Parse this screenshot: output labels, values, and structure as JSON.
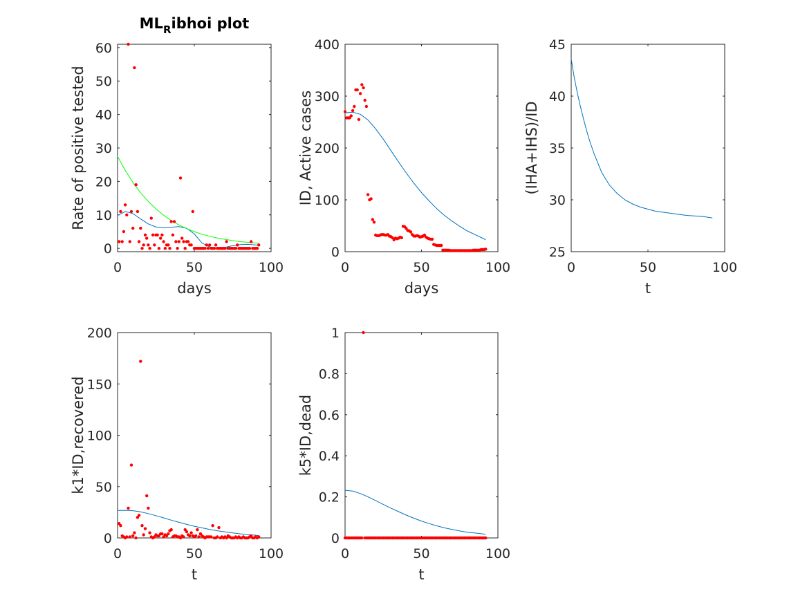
{
  "figure": {
    "title_main": "ML",
    "title_sub": "R",
    "title_rest": "ibhoi plot"
  },
  "chart_data": [
    {
      "type": "scatter",
      "xlabel": "days",
      "ylabel": "Rate of positive tested",
      "xlim": [
        0,
        100
      ],
      "ylim": [
        -1,
        61
      ],
      "xticks": [
        0,
        50,
        100
      ],
      "yticks": [
        0,
        10,
        20,
        30,
        40,
        50,
        60
      ],
      "grid": false,
      "points": {
        "name": "",
        "color": "#ff0000",
        "x": [
          1,
          2,
          3,
          4,
          5,
          6,
          7,
          8,
          9,
          10,
          11,
          12,
          13,
          14,
          15,
          16,
          17,
          18,
          19,
          20,
          21,
          22,
          23,
          24,
          25,
          26,
          27,
          28,
          29,
          30,
          31,
          32,
          33,
          34,
          35,
          36,
          37,
          38,
          39,
          40,
          41,
          42,
          43,
          44,
          45,
          46,
          47,
          48,
          49,
          50,
          51,
          52,
          53,
          54,
          55,
          56,
          57,
          58,
          59,
          60,
          61,
          62,
          63,
          64,
          65,
          66,
          67,
          68,
          69,
          70,
          71,
          72,
          73,
          74,
          75,
          76,
          77,
          78,
          79,
          80,
          81,
          82,
          83,
          84,
          85,
          86,
          87,
          88,
          89,
          90,
          91,
          92
        ],
        "y": [
          2,
          11,
          2,
          5,
          13,
          10,
          61,
          2,
          11,
          6,
          54,
          19,
          11,
          2,
          6,
          0,
          1,
          4,
          3,
          1,
          0,
          9,
          4,
          1,
          4,
          4,
          0,
          3,
          4,
          2,
          0,
          1,
          1,
          0,
          8,
          4,
          8,
          2,
          0,
          2,
          21,
          3,
          2,
          0,
          2,
          2,
          1,
          1,
          11,
          0,
          0,
          0,
          0,
          0,
          0,
          0,
          0,
          1,
          0,
          1,
          0,
          0,
          0,
          1,
          0,
          0,
          0,
          0,
          0,
          0,
          2,
          0,
          0,
          0,
          0,
          0,
          0,
          1,
          0,
          0,
          0,
          0,
          0,
          0,
          0,
          0,
          2,
          0,
          0,
          0,
          0,
          1
        ]
      },
      "lines": [
        {
          "name": "",
          "color": "#0072bd",
          "x": [
            0,
            5,
            10,
            15,
            20,
            25,
            30,
            35,
            40,
            45,
            50,
            55,
            60,
            65,
            70,
            75,
            80,
            85,
            90,
            92
          ],
          "y": [
            9.8,
            11.0,
            10.4,
            8.8,
            7.3,
            6.4,
            6.1,
            6.3,
            6.5,
            6.0,
            4.3,
            1.6,
            0.4,
            0.1,
            0.3,
            0.8,
            1.1,
            1.2,
            1.0,
            0.9
          ]
        },
        {
          "name": "",
          "color": "#00ff00",
          "x": [
            0,
            5,
            10,
            15,
            20,
            25,
            30,
            35,
            40,
            45,
            50,
            55,
            60,
            65,
            70,
            75,
            80,
            85,
            90,
            92
          ],
          "y": [
            27.5,
            23.3,
            19.7,
            16.6,
            14.0,
            11.8,
            9.9,
            8.3,
            7.0,
            5.9,
            5.0,
            4.2,
            3.6,
            3.1,
            2.7,
            2.3,
            2.0,
            1.8,
            1.6,
            1.5
          ]
        }
      ]
    },
    {
      "type": "scatter",
      "xlabel": "days",
      "ylabel": "ID, Active cases",
      "xlim": [
        0,
        100
      ],
      "ylim": [
        0,
        400
      ],
      "xticks": [
        0,
        50,
        100
      ],
      "yticks": [
        0,
        100,
        200,
        300,
        400
      ],
      "grid": false,
      "points": {
        "name": "",
        "color": "#ff0000",
        "x": [
          0,
          1,
          2,
          3,
          4,
          5,
          6,
          7,
          8,
          9,
          10,
          11,
          12,
          13,
          14,
          15,
          16,
          17,
          18,
          19,
          20,
          21,
          22,
          23,
          24,
          25,
          26,
          27,
          28,
          29,
          30,
          31,
          32,
          33,
          34,
          35,
          36,
          37,
          38,
          39,
          40,
          41,
          42,
          43,
          44,
          45,
          46,
          47,
          48,
          49,
          50,
          51,
          52,
          53,
          54,
          55,
          56,
          57,
          58,
          59,
          60,
          61,
          62,
          63,
          64,
          65,
          66,
          67,
          68,
          69,
          70,
          71,
          72,
          73,
          74,
          75,
          76,
          77,
          78,
          79,
          80,
          81,
          82,
          83,
          84,
          85,
          86,
          87,
          88,
          89,
          90,
          91,
          92
        ],
        "y": [
          270,
          258,
          258,
          258,
          262,
          272,
          280,
          312,
          312,
          255,
          305,
          322,
          316,
          292,
          280,
          110,
          100,
          102,
          62,
          57,
          32,
          31,
          31,
          32,
          33,
          33,
          32,
          32,
          33,
          30,
          29,
          27,
          23,
          26,
          25,
          26,
          28,
          27,
          49,
          48,
          45,
          41,
          40,
          38,
          33,
          30,
          30,
          31,
          30,
          28,
          29,
          30,
          32,
          28,
          26,
          25,
          24,
          24,
          14,
          13,
          12,
          12,
          12,
          12,
          3,
          3,
          3,
          3,
          3,
          2,
          2,
          2,
          2,
          2,
          2,
          2,
          2,
          2,
          2,
          2,
          2,
          2,
          2,
          2,
          3,
          3,
          3,
          3,
          3,
          4,
          4,
          4,
          5
        ]
      },
      "lines": [
        {
          "name": "",
          "color": "#0072bd",
          "x": [
            0,
            5,
            10,
            15,
            20,
            25,
            30,
            35,
            40,
            45,
            50,
            55,
            60,
            65,
            70,
            75,
            80,
            85,
            90,
            92
          ],
          "y": [
            268,
            269,
            265,
            254,
            237,
            217,
            195,
            173,
            152,
            132,
            114,
            98,
            83,
            70,
            59,
            49,
            40,
            33,
            26,
            23
          ]
        }
      ]
    },
    {
      "type": "line",
      "xlabel": "t",
      "ylabel": "(IHA+IHS)/ID",
      "xlim": [
        0,
        100
      ],
      "ylim": [
        25,
        45
      ],
      "xticks": [
        0,
        50,
        100
      ],
      "yticks": [
        25,
        30,
        35,
        40,
        45
      ],
      "grid": false,
      "lines": [
        {
          "name": "",
          "color": "#0072bd",
          "x": [
            0,
            2,
            4,
            6,
            8,
            10,
            12,
            15,
            20,
            25,
            30,
            35,
            40,
            45,
            50,
            55,
            60,
            65,
            70,
            75,
            80,
            85,
            90,
            92
          ],
          "y": [
            43.6,
            41.8,
            40.3,
            39.0,
            37.8,
            36.7,
            35.7,
            34.4,
            32.6,
            31.4,
            30.6,
            30.0,
            29.6,
            29.3,
            29.1,
            28.9,
            28.8,
            28.7,
            28.6,
            28.5,
            28.45,
            28.4,
            28.3,
            28.25
          ]
        }
      ]
    },
    {
      "type": "scatter",
      "xlabel": "t",
      "ylabel": "k1*ID,recovered",
      "xlim": [
        0,
        100
      ],
      "ylim": [
        0,
        200
      ],
      "xticks": [
        0,
        50,
        100
      ],
      "yticks": [
        0,
        50,
        100,
        150,
        200
      ],
      "grid": false,
      "points": {
        "name": "",
        "color": "#ff0000",
        "x": [
          1,
          2,
          3,
          4,
          5,
          6,
          7,
          8,
          9,
          10,
          11,
          12,
          13,
          14,
          15,
          16,
          17,
          18,
          19,
          20,
          21,
          22,
          23,
          24,
          25,
          26,
          27,
          28,
          29,
          30,
          31,
          32,
          33,
          34,
          35,
          36,
          37,
          38,
          39,
          40,
          41,
          42,
          43,
          44,
          45,
          46,
          47,
          48,
          49,
          50,
          51,
          52,
          53,
          54,
          55,
          56,
          57,
          58,
          59,
          60,
          61,
          62,
          63,
          64,
          65,
          66,
          67,
          68,
          69,
          70,
          71,
          72,
          73,
          74,
          75,
          76,
          77,
          78,
          79,
          80,
          81,
          82,
          83,
          84,
          85,
          86,
          87,
          88,
          89,
          90,
          91,
          92
        ],
        "y": [
          14,
          12,
          2,
          1,
          0,
          1,
          29,
          1,
          71,
          2,
          5,
          0,
          20,
          22,
          172,
          12,
          3,
          9,
          41,
          29,
          5,
          1,
          0,
          1,
          3,
          2,
          2,
          4,
          4,
          1,
          3,
          2,
          4,
          7,
          8,
          1,
          2,
          2,
          1,
          1,
          0,
          2,
          1,
          8,
          6,
          3,
          2,
          5,
          2,
          1,
          2,
          8,
          1,
          4,
          2,
          1,
          0,
          1,
          1,
          1,
          1,
          12,
          0,
          0,
          1,
          10,
          0,
          1,
          0,
          1,
          0,
          2,
          1,
          0,
          0,
          0,
          1,
          0,
          1,
          0,
          0,
          1,
          0,
          0,
          0,
          1,
          2,
          0,
          0,
          1,
          0,
          1
        ]
      },
      "lines": [
        {
          "name": "",
          "color": "#0072bd",
          "x": [
            0,
            5,
            10,
            15,
            20,
            25,
            30,
            35,
            40,
            45,
            50,
            55,
            60,
            65,
            70,
            75,
            80,
            85,
            90,
            92
          ],
          "y": [
            26.8,
            26.9,
            26.5,
            25.4,
            23.7,
            21.7,
            19.5,
            17.3,
            15.2,
            13.2,
            11.4,
            9.8,
            8.3,
            7.0,
            5.9,
            4.9,
            4.0,
            3.3,
            2.6,
            2.3
          ]
        }
      ]
    },
    {
      "type": "scatter",
      "xlabel": "t",
      "ylabel": "k5*ID,dead",
      "xlim": [
        0,
        100
      ],
      "ylim": [
        0,
        1
      ],
      "xticks": [
        0,
        50,
        100
      ],
      "yticks": [
        0,
        0.2,
        0.4,
        0.6,
        0.8,
        1
      ],
      "grid": false,
      "points": {
        "name": "",
        "color": "#ff0000",
        "x": [
          0,
          1,
          2,
          3,
          4,
          5,
          6,
          7,
          8,
          9,
          10,
          11,
          12,
          13,
          14,
          15,
          16,
          17,
          18,
          19,
          20,
          21,
          22,
          23,
          24,
          25,
          26,
          27,
          28,
          29,
          30,
          31,
          32,
          33,
          34,
          35,
          36,
          37,
          38,
          39,
          40,
          41,
          42,
          43,
          44,
          45,
          46,
          47,
          48,
          49,
          50,
          51,
          52,
          53,
          54,
          55,
          56,
          57,
          58,
          59,
          60,
          61,
          62,
          63,
          64,
          65,
          66,
          67,
          68,
          69,
          70,
          71,
          72,
          73,
          74,
          75,
          76,
          77,
          78,
          79,
          80,
          81,
          82,
          83,
          84,
          85,
          86,
          87,
          88,
          89,
          90,
          91,
          92
        ],
        "y": [
          0,
          0,
          0,
          0,
          0,
          0,
          0,
          0,
          0,
          0,
          0,
          0,
          1,
          0,
          0,
          0,
          0,
          0,
          0,
          0,
          0,
          0,
          0,
          0,
          0,
          0,
          0,
          0,
          0,
          0,
          0,
          0,
          0,
          0,
          0,
          0,
          0,
          0,
          0,
          0,
          0,
          0,
          0,
          0,
          0,
          0,
          0,
          0,
          0,
          0,
          0,
          0,
          0,
          0,
          0,
          0,
          0,
          0,
          0,
          0,
          0,
          0,
          0,
          0,
          0,
          0,
          0,
          0,
          0,
          0,
          0,
          0,
          0,
          0,
          0,
          0,
          0,
          0,
          0,
          0,
          0,
          0,
          0,
          0,
          0,
          0,
          0,
          0,
          0,
          0,
          0,
          0,
          0
        ]
      },
      "lines": [
        {
          "name": "",
          "color": "#0072bd",
          "x": [
            0,
            5,
            10,
            15,
            20,
            25,
            30,
            35,
            40,
            45,
            50,
            55,
            60,
            65,
            70,
            75,
            80,
            85,
            90,
            92
          ],
          "y": [
            0.232,
            0.228,
            0.216,
            0.2,
            0.182,
            0.163,
            0.145,
            0.128,
            0.111,
            0.096,
            0.082,
            0.07,
            0.059,
            0.049,
            0.041,
            0.034,
            0.028,
            0.024,
            0.02,
            0.018
          ]
        }
      ]
    }
  ]
}
